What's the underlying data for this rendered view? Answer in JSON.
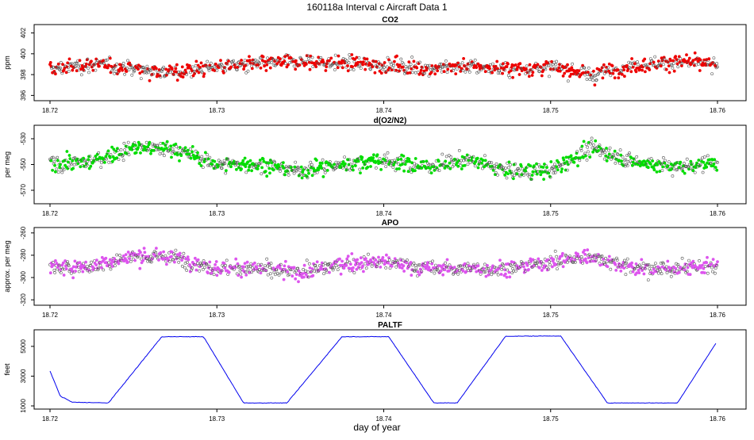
{
  "figure": {
    "title": "160118a   Interval c Aircraft Data 1",
    "xlabel": "day of year"
  },
  "chart_data": [
    {
      "type": "scatter",
      "title": "CO2",
      "ylabel": "ppm",
      "xlim": [
        18.72,
        18.76
      ],
      "ylim": [
        395.8,
        402.5
      ],
      "xticks": [
        "18.72",
        "18.73",
        "18.74",
        "18.75",
        "18.76"
      ],
      "yticks": [
        "396",
        "398",
        "400",
        "402"
      ],
      "color": "#ee0000",
      "series": [
        {
          "name": "CO2",
          "x": [
            18.72,
            18.7225,
            18.725,
            18.7275,
            18.73,
            18.7325,
            18.735,
            18.7375,
            18.74,
            18.7425,
            18.745,
            18.7475,
            18.75,
            18.7525,
            18.755,
            18.7575,
            18.76
          ],
          "values": [
            398.5,
            399.0,
            398.6,
            398.2,
            398.8,
            399.0,
            399.2,
            399.1,
            398.9,
            398.6,
            398.8,
            398.5,
            398.7,
            398.0,
            398.9,
            399.2,
            398.9
          ]
        }
      ]
    },
    {
      "type": "scatter",
      "title": "d(O2/N2)",
      "ylabel": "per meg",
      "xlim": [
        18.72,
        18.76
      ],
      "ylim": [
        -578,
        -522
      ],
      "xticks": [
        "18.72",
        "18.73",
        "18.74",
        "18.75",
        "18.76"
      ],
      "yticks": [
        "-530",
        "-550",
        "-570"
      ],
      "color": "#00dd00",
      "series": [
        {
          "name": "d(O2/N2)",
          "x": [
            18.72,
            18.7225,
            18.725,
            18.7275,
            18.73,
            18.7325,
            18.735,
            18.7375,
            18.74,
            18.7425,
            18.745,
            18.7475,
            18.75,
            18.7525,
            18.755,
            18.7575,
            18.76
          ],
          "values": [
            -550,
            -548,
            -537,
            -538,
            -550,
            -550,
            -555,
            -550,
            -547,
            -552,
            -546,
            -555,
            -555,
            -537,
            -548,
            -552,
            -548
          ]
        }
      ]
    },
    {
      "type": "scatter",
      "title": "APO",
      "ylabel": "approx. per meg",
      "xlim": [
        18.72,
        18.76
      ],
      "ylim": [
        -322,
        -258
      ],
      "xticks": [
        "18.72",
        "18.73",
        "18.74",
        "18.75",
        "18.76"
      ],
      "yticks": [
        "-260",
        "-280",
        "-300",
        "-320"
      ],
      "color": "#dd55ee",
      "series": [
        {
          "name": "APO",
          "x": [
            18.72,
            18.7225,
            18.725,
            18.7275,
            18.73,
            18.7325,
            18.735,
            18.7375,
            18.74,
            18.7425,
            18.745,
            18.7475,
            18.75,
            18.7525,
            18.755,
            18.7575,
            18.76
          ],
          "values": [
            -292,
            -290,
            -281,
            -282,
            -292,
            -292,
            -296,
            -288,
            -286,
            -292,
            -292,
            -292,
            -286,
            -281,
            -292,
            -292,
            -290
          ]
        }
      ]
    },
    {
      "type": "line",
      "title": "PALTF",
      "ylabel": "feet",
      "xlim": [
        18.72,
        18.76
      ],
      "ylim": [
        1000,
        5900
      ],
      "xticks": [
        "18.72",
        "18.73",
        "18.74",
        "18.75",
        "18.76"
      ],
      "yticks": [
        "1000",
        "3000",
        "5000"
      ],
      "color": "#0000ee",
      "series": [
        {
          "name": "PALTF",
          "x": [
            18.72,
            18.7206,
            18.7207,
            18.721,
            18.7213,
            18.7235,
            18.7267,
            18.7292,
            18.7316,
            18.7342,
            18.7375,
            18.7403,
            18.743,
            18.7444,
            18.7473,
            18.7506,
            18.7534,
            18.7561,
            18.7576,
            18.7599
          ],
          "values": [
            3350,
            1700,
            1600,
            1450,
            1250,
            1200,
            5650,
            5650,
            1200,
            1200,
            5650,
            5650,
            1200,
            1200,
            5680,
            5700,
            1200,
            1200,
            1200,
            5200
          ]
        }
      ]
    }
  ]
}
